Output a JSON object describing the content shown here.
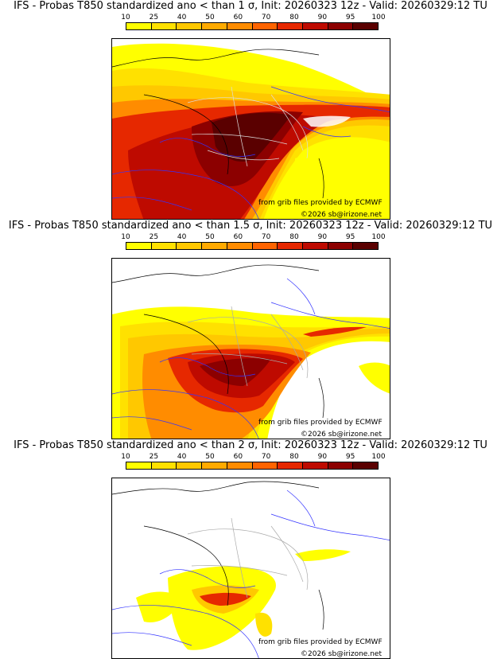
{
  "scale": {
    "ticks": [
      "10",
      "25",
      "40",
      "50",
      "60",
      "70",
      "80",
      "90",
      "95",
      "100"
    ],
    "colors": [
      "#ffff00",
      "#ffe100",
      "#ffc800",
      "#ffaa00",
      "#ff8c00",
      "#ff6400",
      "#e62800",
      "#be0a00",
      "#8c0000",
      "#5a0000"
    ]
  },
  "panels": [
    {
      "title": "IFS - Probas T850  standardized ano < than 1 σ, Init: 20260323 12z - Valid: 20260329:12 TU",
      "credit_source": "from grib files provided by ECMWF",
      "credit_copyright": "©2026 sb@irizone.net"
    },
    {
      "title": "IFS - Probas T850  standardized ano < than 1.5 σ, Init: 20260323 12z - Valid: 20260329:12 TU",
      "credit_source": "from grib files provided by ECMWF",
      "credit_copyright": "©2026 sb@irizone.net"
    },
    {
      "title": "IFS - Probas T850  standardized ano < than 2 σ, Init: 20260323 12z - Valid: 20260329:12 TU",
      "credit_source": "from grib files provided by ECMWF",
      "credit_copyright": "©2026 sb@irizone.net"
    }
  ]
}
